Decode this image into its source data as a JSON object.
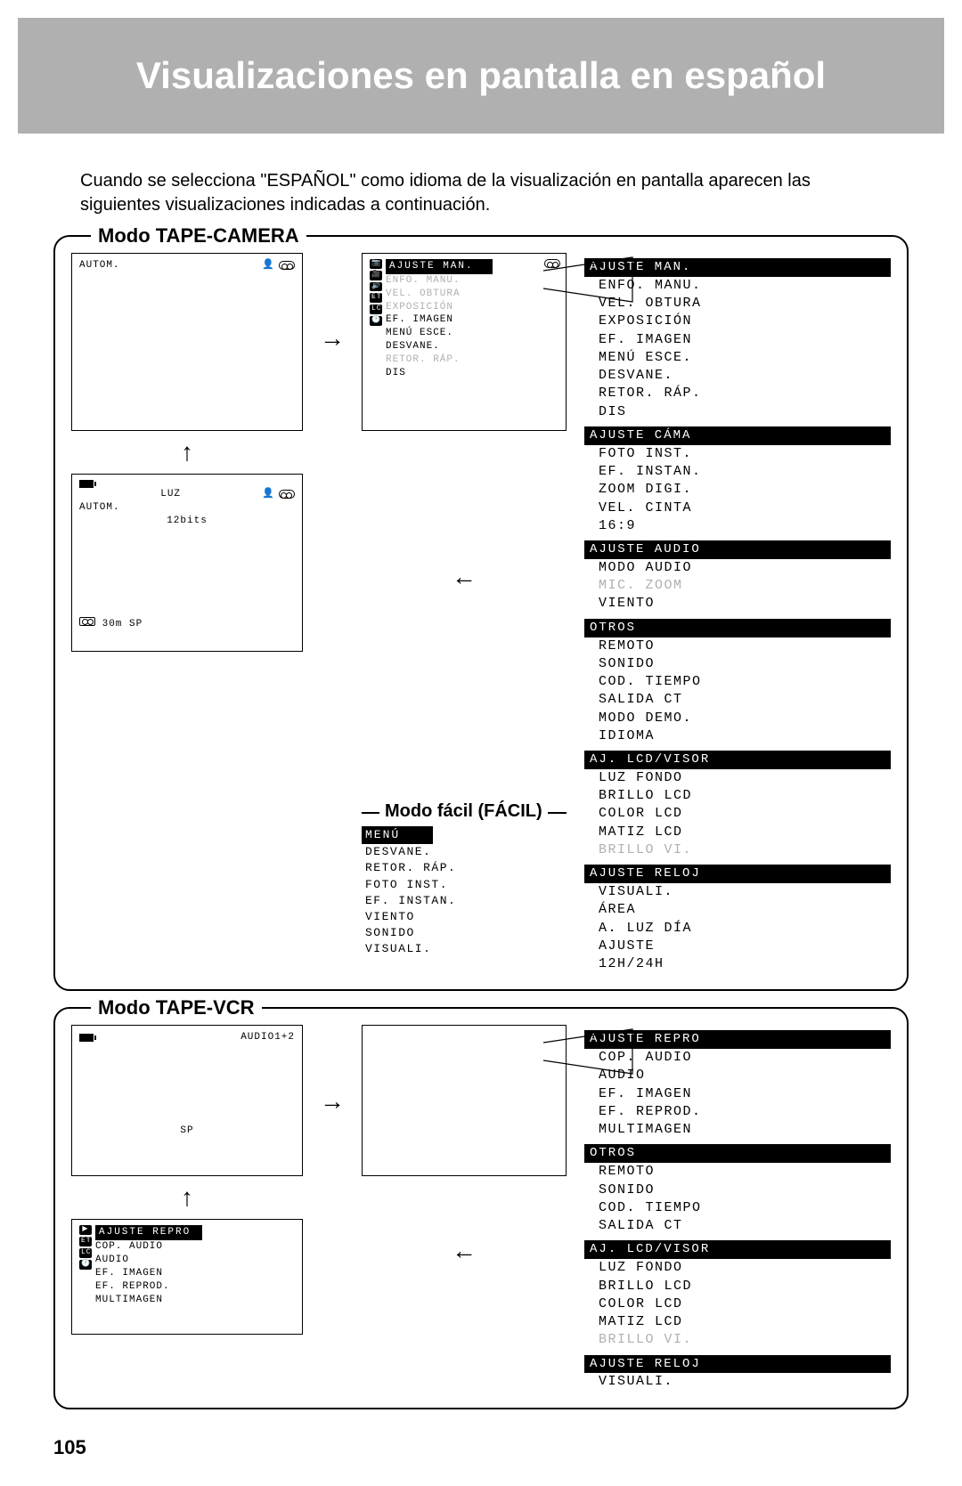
{
  "title": "Visualizaciones en pantalla en español",
  "intro": "Cuando se selecciona \"ESPAÑOL\" como idioma de la visualización en pantalla aparecen las siguientes visualizaciones indicadas a continuación.",
  "page_number": "105",
  "section_tape_camera": {
    "label": "Modo TAPE-CAMERA",
    "screen1": {
      "autom": "AUTOM."
    },
    "screen2": {
      "luz": "LUZ",
      "autom": "AUTOM.",
      "bits": "12bits",
      "status": "30m  SP"
    },
    "screen_menu_small": {
      "header": "AJUSTE MAN.",
      "items_dim": [
        "ENFO. MANU.",
        "VEL. OBTURA",
        "EXPOSICIÓN"
      ],
      "items": [
        "EF. IMAGEN",
        "MENÚ ESCE.",
        "DESVANE."
      ],
      "items_dim2": [
        "RETOR. RÁP."
      ],
      "items2": [
        "DIS"
      ]
    },
    "facil": {
      "label": "Modo fácil (FÁCIL)",
      "header": "MENÚ",
      "items": [
        "DESVANE.",
        "RETOR. RÁP.",
        "FOTO INST.",
        "EF. INSTAN.",
        "VIENTO",
        "SONIDO",
        "VISUALI."
      ]
    },
    "right_groups": [
      {
        "header": "AJUSTE MAN.",
        "items": [
          "ENFO. MANU.",
          "VEL. OBTURA",
          "EXPOSICIÓN",
          "EF. IMAGEN",
          "MENÚ ESCE.",
          "DESVANE.",
          "RETOR. RÁP.",
          "DIS"
        ]
      },
      {
        "header": "AJUSTE CÁMA",
        "items": [
          "FOTO INST.",
          "EF. INSTAN.",
          "ZOOM DIGI.",
          "VEL. CINTA",
          "16:9"
        ]
      },
      {
        "header": "AJUSTE AUDIO",
        "items": [
          "MODO AUDIO"
        ],
        "items_dim": [
          "MIC. ZOOM"
        ],
        "items2": [
          "VIENTO"
        ]
      },
      {
        "header": "OTROS",
        "items": [
          "REMOTO",
          "SONIDO",
          "COD. TIEMPO",
          "SALIDA CT",
          "MODO DEMO.",
          "IDIOMA"
        ]
      },
      {
        "header": "AJ. LCD/VISOR",
        "items": [
          "LUZ FONDO",
          "BRILLO LCD",
          "COLOR LCD",
          "MATIZ LCD"
        ],
        "items_dim": [
          "BRILLO VI."
        ]
      },
      {
        "header": "AJUSTE RELOJ",
        "items": [
          "VISUALI.",
          "ÁREA",
          "A. LUZ DÍA",
          "AJUSTE",
          "",
          "12H/24H"
        ]
      }
    ]
  },
  "section_tape_vcr": {
    "label": "Modo TAPE-VCR",
    "screen1": {
      "audio": "AUDIO1+2",
      "sp": "SP"
    },
    "screen_menu_small": {
      "header": "AJUSTE REPRO",
      "items": [
        "COP. AUDIO",
        "AUDIO",
        "EF. IMAGEN",
        "EF. REPROD.",
        "MULTIMAGEN"
      ]
    },
    "right_groups": [
      {
        "header": "AJUSTE REPRO",
        "items": [
          "COP. AUDIO",
          "AUDIO",
          "EF. IMAGEN",
          "EF. REPROD.",
          "MULTIMAGEN"
        ]
      },
      {
        "header": "OTROS",
        "items": [
          "REMOTO",
          "SONIDO",
          "COD. TIEMPO",
          "SALIDA CT"
        ]
      },
      {
        "header": "AJ. LCD/VISOR",
        "items": [
          "LUZ FONDO",
          "BRILLO LCD",
          "COLOR LCD",
          "MATIZ LCD"
        ],
        "items_dim": [
          "BRILLO VI."
        ]
      },
      {
        "header": "AJUSTE RELOJ",
        "items": [
          "VISUALI."
        ]
      }
    ]
  }
}
